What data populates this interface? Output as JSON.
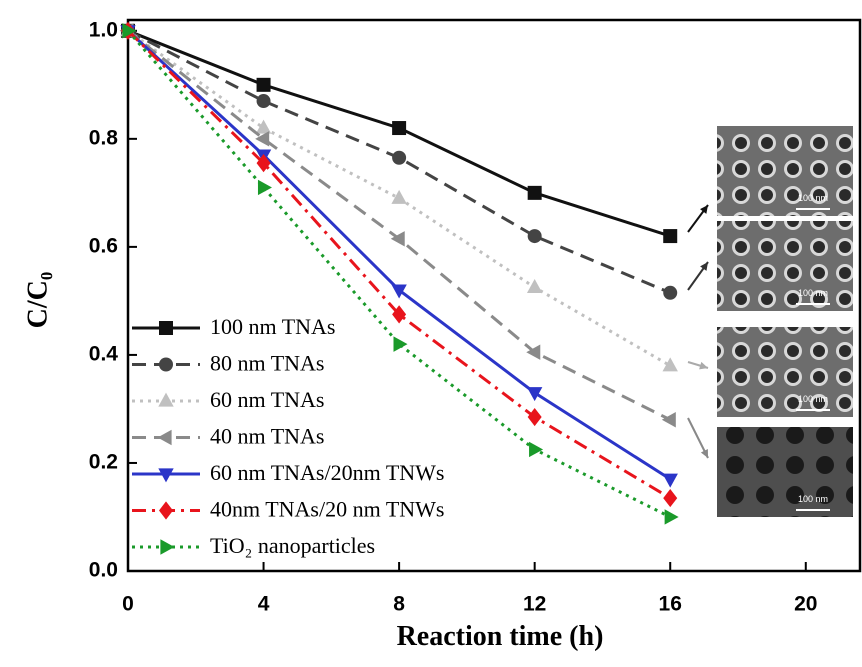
{
  "chart_data": {
    "type": "line",
    "x_label": "Reaction time (h)",
    "y_label": "C/C₀",
    "x": [
      0,
      4,
      8,
      12,
      16
    ],
    "xlim": [
      0,
      21.6
    ],
    "xticks": [
      0,
      4,
      8,
      12,
      16,
      20
    ],
    "ylim": [
      0,
      1.02
    ],
    "yticks": [
      {
        "value": 0,
        "label": "0.0"
      },
      0.2,
      0.4,
      0.6,
      0.8,
      {
        "value": 1,
        "label": "1.0"
      }
    ],
    "legend": "lower left",
    "series": [
      {
        "name": "100 nm TNAs",
        "color": "#111111",
        "marker": "square",
        "dash": "solid",
        "values": [
          1.0,
          0.9,
          0.82,
          0.7,
          0.62
        ]
      },
      {
        "name": "80 nm TNAs",
        "color": "#444444",
        "marker": "circle",
        "dash": "dashed",
        "values": [
          1.0,
          0.87,
          0.765,
          0.62,
          0.515
        ]
      },
      {
        "name": "60 nm TNAs",
        "color": "#c0c0c0",
        "marker": "triangle-up",
        "dash": "dotted",
        "values": [
          1.0,
          0.82,
          0.69,
          0.525,
          0.38
        ]
      },
      {
        "name": "40 nm TNAs",
        "color": "#8a8a8a",
        "marker": "triangle-left",
        "dash": "dashed",
        "values": [
          1.0,
          0.8,
          0.615,
          0.405,
          0.28
        ]
      },
      {
        "name": "60 nm TNAs/20nm TNWs",
        "color": "#2b35c8",
        "marker": "triangle-down",
        "dash": "solid",
        "values": [
          1.0,
          0.77,
          0.52,
          0.33,
          0.17
        ]
      },
      {
        "name": "40nm TNAs/20 nm TNWs",
        "color": "#e8141c",
        "marker": "diamond",
        "dash": "dashdot",
        "values": [
          1.0,
          0.755,
          0.475,
          0.285,
          0.135
        ]
      },
      {
        "name": "TiO₂ nanoparticles",
        "color": "#1a9a2a",
        "marker": "triangle-right",
        "dash": "dotted",
        "values": [
          1.0,
          0.71,
          0.42,
          0.225,
          0.1
        ]
      }
    ],
    "insets": [
      {
        "scale_label": "100 nm"
      },
      {
        "scale_label": "100 nm"
      },
      {
        "scale_label": "100 nm"
      },
      {
        "scale_label": "100 nm"
      }
    ]
  }
}
